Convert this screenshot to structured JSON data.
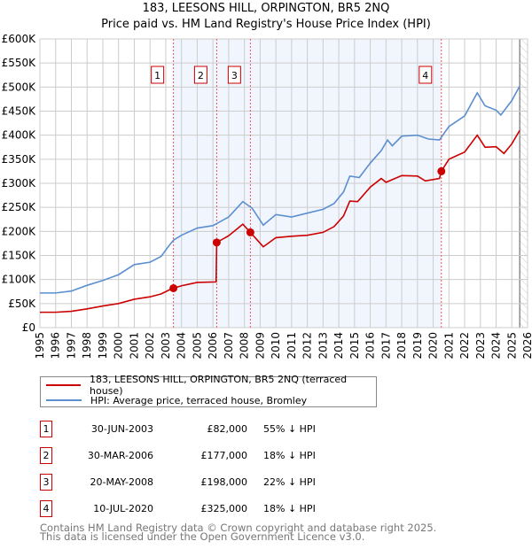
{
  "chart_data": {
    "type": "line",
    "title": "183, LEESONS HILL, ORPINGTON, BR5 2NQ",
    "subtitle": "Price paid vs. HM Land Registry's House Price Index (HPI)",
    "xlim": [
      1995,
      2026
    ],
    "ylim": [
      0,
      600000
    ],
    "x_ticks": [
      "1995",
      "1996",
      "1997",
      "1998",
      "1999",
      "2000",
      "2001",
      "2002",
      "2003",
      "2004",
      "2005",
      "2006",
      "2007",
      "2008",
      "2009",
      "2010",
      "2011",
      "2012",
      "2013",
      "2014",
      "2015",
      "2016",
      "2017",
      "2018",
      "2019",
      "2020",
      "2021",
      "2022",
      "2023",
      "2024",
      "2025",
      "2026"
    ],
    "y_ticks": [
      {
        "value": 0,
        "label": "£0"
      },
      {
        "value": 50000,
        "label": "£50K"
      },
      {
        "value": 100000,
        "label": "£100K"
      },
      {
        "value": 150000,
        "label": "£150K"
      },
      {
        "value": 200000,
        "label": "£200K"
      },
      {
        "value": 250000,
        "label": "£250K"
      },
      {
        "value": 300000,
        "label": "£300K"
      },
      {
        "value": 350000,
        "label": "£350K"
      },
      {
        "value": 400000,
        "label": "£400K"
      },
      {
        "value": 450000,
        "label": "£450K"
      },
      {
        "value": 500000,
        "label": "£500K"
      },
      {
        "value": 550000,
        "label": "£550K"
      },
      {
        "value": 600000,
        "label": "£600K"
      }
    ],
    "grid": true,
    "shaded_ranges": [
      [
        2003.49,
        2020.52
      ]
    ],
    "forecast_hatch_from": 2025.5,
    "series": [
      {
        "name": "183, LEESONS HILL, ORPINGTON, BR5 2NQ (terraced house)",
        "color": "#cc0000",
        "points": [
          [
            1995,
            32000
          ],
          [
            1996,
            32000
          ],
          [
            1997,
            34000
          ],
          [
            1998,
            39000
          ],
          [
            1999,
            45000
          ],
          [
            2000,
            50000
          ],
          [
            2001,
            59000
          ],
          [
            2002,
            64000
          ],
          [
            2002.7,
            70000
          ],
          [
            2003.2,
            78000
          ],
          [
            2003.49,
            82000
          ],
          [
            2004,
            87000
          ],
          [
            2005,
            94000
          ],
          [
            2006.2,
            95000
          ],
          [
            2006.24,
            177000
          ],
          [
            2007,
            191000
          ],
          [
            2007.9,
            215000
          ],
          [
            2008.38,
            198000
          ],
          [
            2009.2,
            168000
          ],
          [
            2010,
            187000
          ],
          [
            2011,
            190000
          ],
          [
            2012,
            192000
          ],
          [
            2013,
            198000
          ],
          [
            2013.7,
            210000
          ],
          [
            2014.3,
            232000
          ],
          [
            2014.7,
            263000
          ],
          [
            2015.2,
            262000
          ],
          [
            2016,
            292000
          ],
          [
            2016.7,
            310000
          ],
          [
            2017,
            302000
          ],
          [
            2018,
            316000
          ],
          [
            2019,
            315000
          ],
          [
            2019.5,
            305000
          ],
          [
            2020.4,
            310000
          ],
          [
            2020.52,
            325000
          ],
          [
            2021,
            350000
          ],
          [
            2022,
            365000
          ],
          [
            2022.8,
            400000
          ],
          [
            2023.3,
            375000
          ],
          [
            2024,
            376000
          ],
          [
            2024.5,
            362000
          ],
          [
            2025,
            382000
          ],
          [
            2025.5,
            410000
          ]
        ]
      },
      {
        "name": "HPI: Average price, terraced house, Bromley",
        "color": "#5b8fd0",
        "points": [
          [
            1995,
            72000
          ],
          [
            1996,
            72000
          ],
          [
            1997,
            76000
          ],
          [
            1998,
            88000
          ],
          [
            1999,
            98000
          ],
          [
            2000,
            110000
          ],
          [
            2001,
            131000
          ],
          [
            2002,
            136000
          ],
          [
            2002.7,
            148000
          ],
          [
            2003.2,
            170000
          ],
          [
            2003.5,
            182000
          ],
          [
            2004,
            192000
          ],
          [
            2005,
            207000
          ],
          [
            2006,
            212000
          ],
          [
            2007,
            230000
          ],
          [
            2007.9,
            262000
          ],
          [
            2008.5,
            248000
          ],
          [
            2009.2,
            213000
          ],
          [
            2010,
            235000
          ],
          [
            2011,
            230000
          ],
          [
            2012,
            238000
          ],
          [
            2013,
            246000
          ],
          [
            2013.7,
            258000
          ],
          [
            2014.3,
            282000
          ],
          [
            2014.7,
            315000
          ],
          [
            2015.3,
            312000
          ],
          [
            2016,
            342000
          ],
          [
            2016.7,
            368000
          ],
          [
            2017.1,
            390000
          ],
          [
            2017.4,
            378000
          ],
          [
            2018,
            398000
          ],
          [
            2019,
            400000
          ],
          [
            2019.7,
            392000
          ],
          [
            2020.4,
            390000
          ],
          [
            2021,
            418000
          ],
          [
            2022,
            440000
          ],
          [
            2022.8,
            488000
          ],
          [
            2023.3,
            461000
          ],
          [
            2024,
            452000
          ],
          [
            2024.3,
            442000
          ],
          [
            2025,
            472000
          ],
          [
            2025.5,
            502000
          ]
        ]
      }
    ],
    "sales": [
      {
        "id": "1",
        "x": 2003.49,
        "price": 82000,
        "date": "30-JUN-2003",
        "price_label": "£82,000",
        "hpi_label": "55% ↓ HPI"
      },
      {
        "id": "2",
        "x": 2006.24,
        "price": 177000,
        "date": "30-MAR-2006",
        "price_label": "£177,000",
        "hpi_label": "18% ↓ HPI"
      },
      {
        "id": "3",
        "x": 2008.38,
        "price": 198000,
        "date": "20-MAY-2008",
        "price_label": "£198,000",
        "hpi_label": "22% ↓ HPI"
      },
      {
        "id": "4",
        "x": 2020.52,
        "price": 325000,
        "date": "10-JUL-2020",
        "price_label": "£325,000",
        "hpi_label": "18% ↓ HPI"
      }
    ]
  },
  "legend": {
    "property": "183, LEESONS HILL, ORPINGTON, BR5 2NQ (terraced house)",
    "hpi": "HPI: Average price, terraced house, Bromley"
  },
  "footer": {
    "line1": "Contains HM Land Registry data © Crown copyright and database right 2025.",
    "line2": "This data is licensed under the Open Government Licence v3.0."
  }
}
